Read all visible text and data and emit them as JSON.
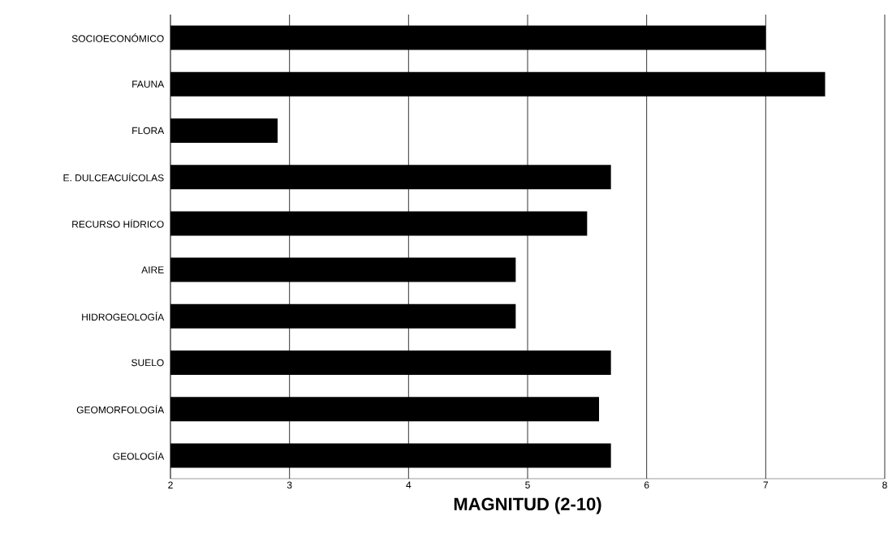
{
  "chart_data": {
    "type": "bar",
    "orientation": "horizontal",
    "xlabel": "MAGNITUD (2-10)",
    "categories": [
      "SOCIOECONÓMICO",
      "FAUNA",
      "FLORA",
      "E. DULCEACUÍCOLAS",
      "RECURSO HÍDRICO",
      "AIRE",
      "HIDROGEOLOGÍA",
      "SUELO",
      "GEOMORFOLOGÍA",
      "GEOLOGÍA"
    ],
    "values": [
      7.0,
      7.5,
      2.9,
      5.7,
      5.5,
      4.9,
      4.9,
      5.7,
      5.6,
      5.7
    ],
    "color": "#000000",
    "xlim": [
      2,
      8
    ],
    "xticks": [
      2,
      3,
      4,
      5,
      6,
      7,
      8
    ],
    "grid": "x"
  }
}
